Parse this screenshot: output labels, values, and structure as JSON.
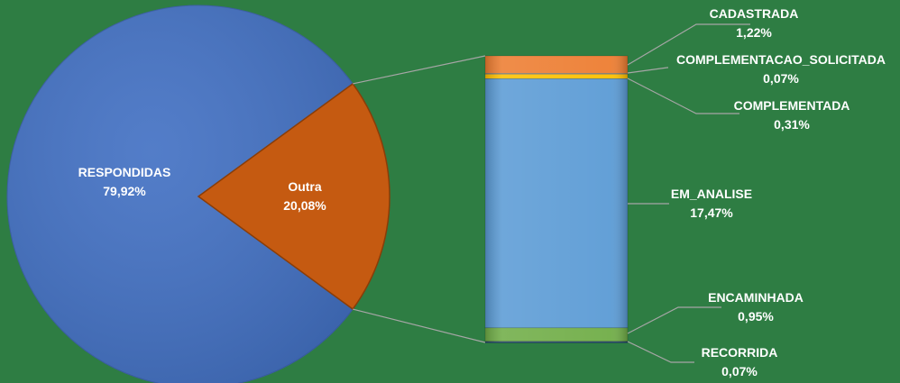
{
  "chart_data": {
    "type": "pie",
    "subtype": "bar-of-pie",
    "background_color": "#2E7D43",
    "pie": {
      "slices": [
        {
          "label": "RESPONDIDAS",
          "value": 79.92,
          "value_text": "79,92%",
          "color": "#4472C4"
        },
        {
          "label": "Outra",
          "value": 20.08,
          "value_text": "20,08%",
          "color": "#C55A11"
        }
      ]
    },
    "bar": {
      "segments": [
        {
          "label": "CADASTRADA",
          "value": 1.22,
          "value_text": "1,22%",
          "color": "#ED7D31"
        },
        {
          "label": "COMPLEMENTACAO_SOLICITADA",
          "value": 0.07,
          "value_text": "0,07%",
          "color": "#A5A5A5"
        },
        {
          "label": "COMPLEMENTADA",
          "value": 0.31,
          "value_text": "0,31%",
          "color": "#FFC000"
        },
        {
          "label": "EM_ANALISE",
          "value": 17.47,
          "value_text": "17,47%",
          "color": "#5B9BD5"
        },
        {
          "label": "ENCAMINHADA",
          "value": 0.95,
          "value_text": "0,95%",
          "color": "#70AD47"
        },
        {
          "label": "RECORRIDA",
          "value": 0.07,
          "value_text": "0,07%",
          "color": "#264478"
        }
      ]
    }
  }
}
